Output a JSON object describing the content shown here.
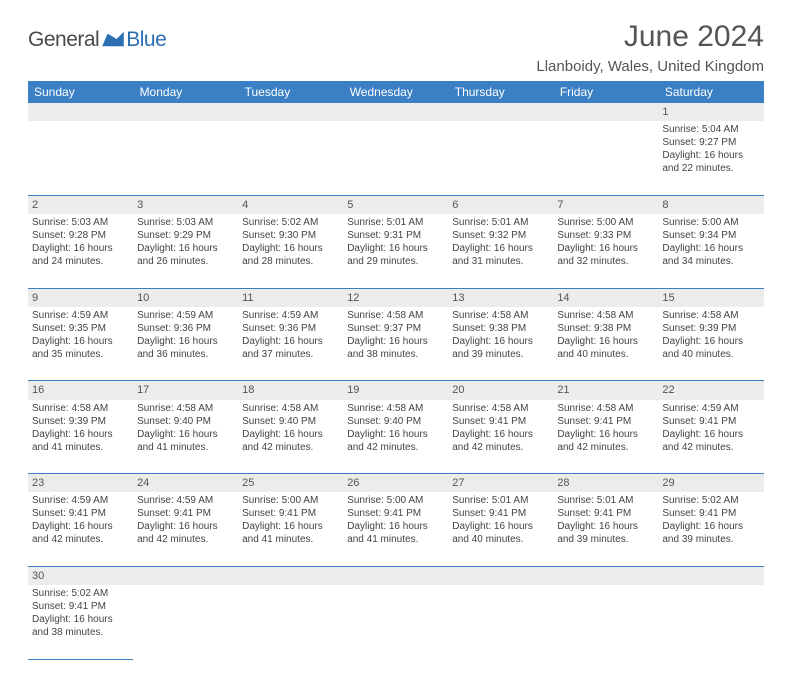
{
  "logo": {
    "text1": "General",
    "text2": "Blue",
    "icon_color": "#2c6fb0"
  },
  "title": "June 2024",
  "location": "Llanboidy, Wales, United Kingdom",
  "colors": {
    "header_bg": "#3b7fc4",
    "header_text": "#ffffff",
    "daynum_bg": "#ececec",
    "cell_border": "#3b7fc4",
    "text": "#444444",
    "title_text": "#555555"
  },
  "day_headers": [
    "Sunday",
    "Monday",
    "Tuesday",
    "Wednesday",
    "Thursday",
    "Friday",
    "Saturday"
  ],
  "weeks": [
    {
      "nums": [
        "",
        "",
        "",
        "",
        "",
        "",
        "1"
      ],
      "cells": [
        null,
        null,
        null,
        null,
        null,
        null,
        {
          "sunrise": "5:04 AM",
          "sunset": "9:27 PM",
          "daylight": "16 hours and 22 minutes."
        }
      ]
    },
    {
      "nums": [
        "2",
        "3",
        "4",
        "5",
        "6",
        "7",
        "8"
      ],
      "cells": [
        {
          "sunrise": "5:03 AM",
          "sunset": "9:28 PM",
          "daylight": "16 hours and 24 minutes."
        },
        {
          "sunrise": "5:03 AM",
          "sunset": "9:29 PM",
          "daylight": "16 hours and 26 minutes."
        },
        {
          "sunrise": "5:02 AM",
          "sunset": "9:30 PM",
          "daylight": "16 hours and 28 minutes."
        },
        {
          "sunrise": "5:01 AM",
          "sunset": "9:31 PM",
          "daylight": "16 hours and 29 minutes."
        },
        {
          "sunrise": "5:01 AM",
          "sunset": "9:32 PM",
          "daylight": "16 hours and 31 minutes."
        },
        {
          "sunrise": "5:00 AM",
          "sunset": "9:33 PM",
          "daylight": "16 hours and 32 minutes."
        },
        {
          "sunrise": "5:00 AM",
          "sunset": "9:34 PM",
          "daylight": "16 hours and 34 minutes."
        }
      ]
    },
    {
      "nums": [
        "9",
        "10",
        "11",
        "12",
        "13",
        "14",
        "15"
      ],
      "cells": [
        {
          "sunrise": "4:59 AM",
          "sunset": "9:35 PM",
          "daylight": "16 hours and 35 minutes."
        },
        {
          "sunrise": "4:59 AM",
          "sunset": "9:36 PM",
          "daylight": "16 hours and 36 minutes."
        },
        {
          "sunrise": "4:59 AM",
          "sunset": "9:36 PM",
          "daylight": "16 hours and 37 minutes."
        },
        {
          "sunrise": "4:58 AM",
          "sunset": "9:37 PM",
          "daylight": "16 hours and 38 minutes."
        },
        {
          "sunrise": "4:58 AM",
          "sunset": "9:38 PM",
          "daylight": "16 hours and 39 minutes."
        },
        {
          "sunrise": "4:58 AM",
          "sunset": "9:38 PM",
          "daylight": "16 hours and 40 minutes."
        },
        {
          "sunrise": "4:58 AM",
          "sunset": "9:39 PM",
          "daylight": "16 hours and 40 minutes."
        }
      ]
    },
    {
      "nums": [
        "16",
        "17",
        "18",
        "19",
        "20",
        "21",
        "22"
      ],
      "cells": [
        {
          "sunrise": "4:58 AM",
          "sunset": "9:39 PM",
          "daylight": "16 hours and 41 minutes."
        },
        {
          "sunrise": "4:58 AM",
          "sunset": "9:40 PM",
          "daylight": "16 hours and 41 minutes."
        },
        {
          "sunrise": "4:58 AM",
          "sunset": "9:40 PM",
          "daylight": "16 hours and 42 minutes."
        },
        {
          "sunrise": "4:58 AM",
          "sunset": "9:40 PM",
          "daylight": "16 hours and 42 minutes."
        },
        {
          "sunrise": "4:58 AM",
          "sunset": "9:41 PM",
          "daylight": "16 hours and 42 minutes."
        },
        {
          "sunrise": "4:58 AM",
          "sunset": "9:41 PM",
          "daylight": "16 hours and 42 minutes."
        },
        {
          "sunrise": "4:59 AM",
          "sunset": "9:41 PM",
          "daylight": "16 hours and 42 minutes."
        }
      ]
    },
    {
      "nums": [
        "23",
        "24",
        "25",
        "26",
        "27",
        "28",
        "29"
      ],
      "cells": [
        {
          "sunrise": "4:59 AM",
          "sunset": "9:41 PM",
          "daylight": "16 hours and 42 minutes."
        },
        {
          "sunrise": "4:59 AM",
          "sunset": "9:41 PM",
          "daylight": "16 hours and 42 minutes."
        },
        {
          "sunrise": "5:00 AM",
          "sunset": "9:41 PM",
          "daylight": "16 hours and 41 minutes."
        },
        {
          "sunrise": "5:00 AM",
          "sunset": "9:41 PM",
          "daylight": "16 hours and 41 minutes."
        },
        {
          "sunrise": "5:01 AM",
          "sunset": "9:41 PM",
          "daylight": "16 hours and 40 minutes."
        },
        {
          "sunrise": "5:01 AM",
          "sunset": "9:41 PM",
          "daylight": "16 hours and 39 minutes."
        },
        {
          "sunrise": "5:02 AM",
          "sunset": "9:41 PM",
          "daylight": "16 hours and 39 minutes."
        }
      ]
    },
    {
      "nums": [
        "30",
        "",
        "",
        "",
        "",
        "",
        ""
      ],
      "cells": [
        {
          "sunrise": "5:02 AM",
          "sunset": "9:41 PM",
          "daylight": "16 hours and 38 minutes."
        },
        null,
        null,
        null,
        null,
        null,
        null
      ]
    }
  ],
  "labels": {
    "sunrise": "Sunrise: ",
    "sunset": "Sunset: ",
    "daylight": "Daylight: "
  }
}
